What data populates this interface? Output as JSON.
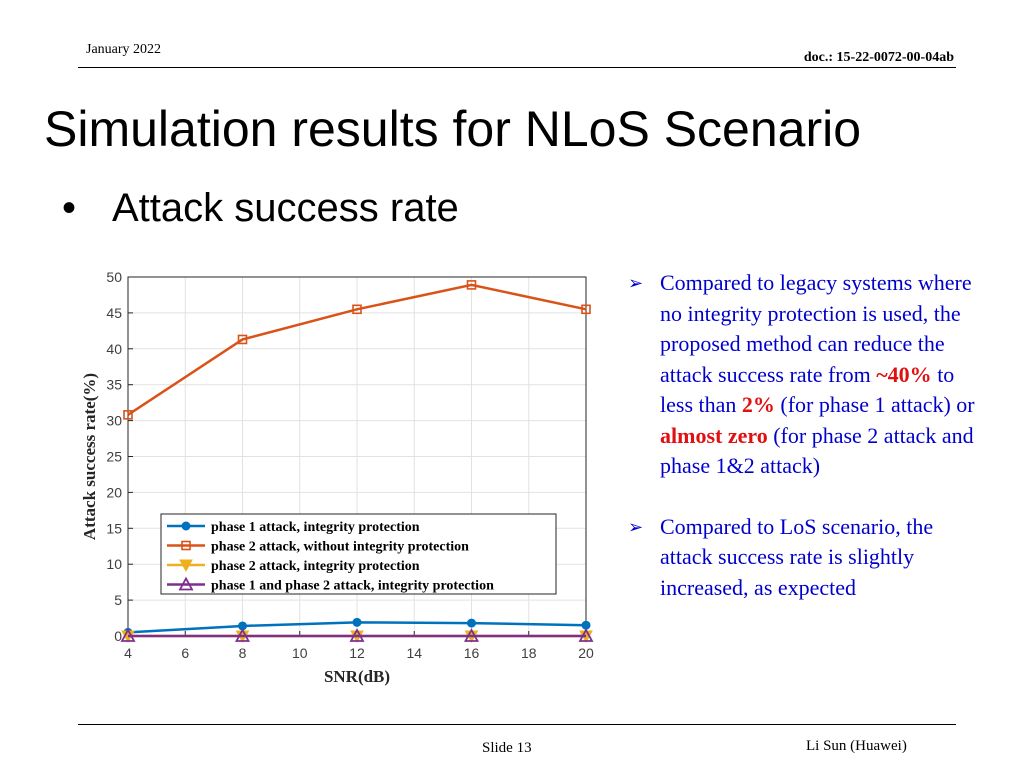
{
  "header": {
    "date": "January 2022",
    "doc": "doc.: 15-22-0072-00-04ab"
  },
  "title": "Simulation results for NLoS Scenario",
  "bullet": {
    "marker": "•",
    "text": "Attack success rate"
  },
  "notes": [
    {
      "arrow": "➢",
      "parts": [
        {
          "text": "Compared to legacy systems where no integrity protection is used, the proposed method can reduce the attack success rate from ",
          "style": "normal"
        },
        {
          "text": "~40%",
          "style": "red"
        },
        {
          "text": " to less than ",
          "style": "normal"
        },
        {
          "text": "2%",
          "style": "red"
        },
        {
          "text": " (for phase 1 attack) or ",
          "style": "normal"
        },
        {
          "text": "almost zero",
          "style": "red"
        },
        {
          "text": " (for phase 2 attack and phase 1&2 attack)",
          "style": "normal"
        }
      ]
    },
    {
      "arrow": "➢",
      "parts": [
        {
          "text": "Compared to LoS scenario, the attack success rate is slightly increased, as expected",
          "style": "normal"
        }
      ]
    }
  ],
  "chart_data": {
    "type": "line",
    "xlabel": "SNR(dB)",
    "ylabel": "Attack success rate(%)",
    "xlim": [
      4,
      20
    ],
    "ylim": [
      0,
      50
    ],
    "xticks": [
      4,
      6,
      8,
      10,
      12,
      14,
      16,
      18,
      20
    ],
    "yticks": [
      0,
      5,
      10,
      15,
      20,
      25,
      30,
      35,
      40,
      45,
      50
    ],
    "grid": true,
    "legend_position": "lower-left",
    "x": [
      4,
      8,
      12,
      16,
      20
    ],
    "series": [
      {
        "name": "phase 1 attack, integrity protection",
        "values": [
          0.5,
          1.4,
          1.9,
          1.8,
          1.5
        ],
        "color": "#0072BD",
        "marker": "circle"
      },
      {
        "name": "phase 2 attack, without integrity protection",
        "values": [
          30.8,
          41.3,
          45.5,
          48.9,
          45.5
        ],
        "color": "#D95319",
        "marker": "square"
      },
      {
        "name": "phase 2 attack, integrity protection",
        "values": [
          0,
          0,
          0,
          0,
          0
        ],
        "color": "#EDB120",
        "marker": "triangle-down"
      },
      {
        "name": "phase 1 and phase 2 attack, integrity protection",
        "values": [
          0,
          0,
          0,
          0,
          0
        ],
        "color": "#7E2F8E",
        "marker": "triangle-up"
      }
    ]
  },
  "footer": {
    "slide": "Slide 13",
    "author": "Li Sun (Huawei)"
  }
}
